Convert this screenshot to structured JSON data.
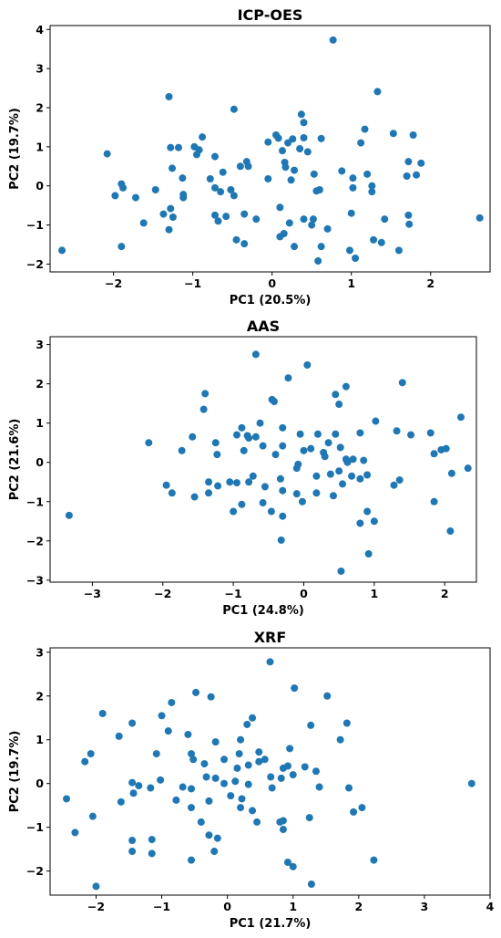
{
  "chart_data": [
    {
      "type": "scatter",
      "title": "ICP-OES",
      "xlabel": "PC1 (20.5%)",
      "ylabel": "PC2 (19.7%)",
      "xlim": [
        -2.8,
        2.75
      ],
      "ylim": [
        -2.2,
        4.1
      ],
      "xticks": [
        -2,
        -1,
        0,
        1,
        2
      ],
      "yticks": [
        -2,
        -1,
        0,
        1,
        2,
        3,
        4
      ],
      "grid": false,
      "color": "#1f77b4",
      "points": [
        [
          0.77,
          3.73
        ],
        [
          1.33,
          2.41
        ],
        [
          -1.3,
          2.28
        ],
        [
          -0.48,
          1.96
        ],
        [
          0.37,
          1.83
        ],
        [
          0.4,
          1.62
        ],
        [
          -0.88,
          1.25
        ],
        [
          1.17,
          1.45
        ],
        [
          1.53,
          1.34
        ],
        [
          1.78,
          1.3
        ],
        [
          0.05,
          1.3
        ],
        [
          0.08,
          1.22
        ],
        [
          0.26,
          1.2
        ],
        [
          0.62,
          1.21
        ],
        [
          0.4,
          1.23
        ],
        [
          -0.05,
          1.12
        ],
        [
          0.2,
          1.1
        ],
        [
          1.12,
          1.1
        ],
        [
          -2.08,
          0.82
        ],
        [
          -1.28,
          0.98
        ],
        [
          -1.18,
          0.98
        ],
        [
          -0.98,
          1.0
        ],
        [
          -0.92,
          0.92
        ],
        [
          -0.72,
          0.75
        ],
        [
          -0.95,
          0.8
        ],
        [
          0.35,
          0.95
        ],
        [
          0.45,
          0.87
        ],
        [
          0.13,
          0.9
        ],
        [
          -0.32,
          0.62
        ],
        [
          -0.3,
          0.5
        ],
        [
          -0.4,
          0.5
        ],
        [
          0.16,
          0.6
        ],
        [
          0.17,
          0.48
        ],
        [
          0.28,
          0.4
        ],
        [
          -1.26,
          0.45
        ],
        [
          -1.13,
          0.2
        ],
        [
          -0.62,
          0.35
        ],
        [
          -0.78,
          0.18
        ],
        [
          0.53,
          0.3
        ],
        [
          0.88,
          0.38
        ],
        [
          1.02,
          0.2
        ],
        [
          1.2,
          0.3
        ],
        [
          1.7,
          0.25
        ],
        [
          1.82,
          0.28
        ],
        [
          1.88,
          0.58
        ],
        [
          1.72,
          0.62
        ],
        [
          -1.9,
          0.05
        ],
        [
          -1.88,
          -0.05
        ],
        [
          -1.98,
          -0.25
        ],
        [
          -1.72,
          -0.3
        ],
        [
          -1.47,
          -0.1
        ],
        [
          -1.12,
          -0.22
        ],
        [
          -1.12,
          -0.3
        ],
        [
          -0.72,
          -0.05
        ],
        [
          -0.65,
          -0.15
        ],
        [
          -0.52,
          -0.1
        ],
        [
          -0.48,
          -0.25
        ],
        [
          -0.05,
          0.18
        ],
        [
          0.24,
          0.15
        ],
        [
          0.56,
          -0.13
        ],
        [
          0.6,
          -0.1
        ],
        [
          1.26,
          -0.15
        ],
        [
          1.26,
          0.0
        ],
        [
          1.02,
          -0.05
        ],
        [
          -1.62,
          -0.95
        ],
        [
          -1.37,
          -0.72
        ],
        [
          -1.28,
          -0.58
        ],
        [
          -1.25,
          -0.8
        ],
        [
          -1.3,
          -1.12
        ],
        [
          -0.72,
          -0.75
        ],
        [
          -0.68,
          -0.9
        ],
        [
          -0.58,
          -0.78
        ],
        [
          -0.35,
          -0.72
        ],
        [
          -0.2,
          -0.85
        ],
        [
          0.1,
          -0.55
        ],
        [
          0.22,
          -0.95
        ],
        [
          0.15,
          -1.22
        ],
        [
          0.1,
          -1.3
        ],
        [
          0.28,
          -1.55
        ],
        [
          0.4,
          -0.85
        ],
        [
          0.52,
          -0.85
        ],
        [
          0.5,
          -1.0
        ],
        [
          0.7,
          -1.1
        ],
        [
          0.62,
          -1.55
        ],
        [
          1.0,
          -0.7
        ],
        [
          1.42,
          -0.85
        ],
        [
          1.72,
          -0.75
        ],
        [
          1.73,
          -0.98
        ],
        [
          2.62,
          -0.82
        ],
        [
          -0.45,
          -1.38
        ],
        [
          -0.35,
          -1.48
        ],
        [
          -1.9,
          -1.55
        ],
        [
          -2.65,
          -1.65
        ],
        [
          0.58,
          -1.92
        ],
        [
          0.98,
          -1.65
        ],
        [
          1.05,
          -1.85
        ],
        [
          1.28,
          -1.38
        ],
        [
          1.38,
          -1.45
        ],
        [
          1.6,
          -1.65
        ]
      ]
    },
    {
      "type": "scatter",
      "title": "AAS",
      "xlabel": "PC1 (24.8%)",
      "ylabel": "PC2 (21.6%)",
      "xlim": [
        -3.6,
        2.45
      ],
      "ylim": [
        -3.05,
        3.2
      ],
      "xticks": [
        -3,
        -2,
        -1,
        0,
        1,
        2
      ],
      "yticks": [
        -3,
        -2,
        -1,
        0,
        1,
        2,
        3
      ],
      "grid": false,
      "color": "#1f77b4",
      "points": [
        [
          -0.68,
          2.75
        ],
        [
          0.05,
          2.48
        ],
        [
          -0.22,
          2.15
        ],
        [
          1.4,
          2.03
        ],
        [
          0.6,
          1.93
        ],
        [
          0.45,
          1.73
        ],
        [
          -0.45,
          1.6
        ],
        [
          -0.42,
          1.55
        ],
        [
          0.5,
          1.48
        ],
        [
          -1.4,
          1.75
        ],
        [
          -1.42,
          1.35
        ],
        [
          1.02,
          1.05
        ],
        [
          -0.62,
          1.0
        ],
        [
          -0.3,
          0.88
        ],
        [
          -0.88,
          0.88
        ],
        [
          -0.05,
          0.72
        ],
        [
          0.2,
          0.72
        ],
        [
          0.45,
          0.72
        ],
        [
          0.8,
          0.75
        ],
        [
          1.32,
          0.8
        ],
        [
          1.52,
          0.7
        ],
        [
          1.8,
          0.75
        ],
        [
          2.23,
          1.15
        ],
        [
          -1.58,
          0.65
        ],
        [
          -0.95,
          0.7
        ],
        [
          -0.8,
          0.68
        ],
        [
          -0.78,
          0.62
        ],
        [
          -0.68,
          0.65
        ],
        [
          -1.25,
          0.5
        ],
        [
          -2.2,
          0.5
        ],
        [
          -0.58,
          0.42
        ],
        [
          -0.3,
          0.42
        ],
        [
          0.35,
          0.5
        ],
        [
          0.52,
          0.38
        ],
        [
          -0.85,
          0.3
        ],
        [
          -1.73,
          0.3
        ],
        [
          -1.23,
          0.2
        ],
        [
          -0.4,
          0.2
        ],
        [
          0.0,
          0.3
        ],
        [
          0.1,
          0.35
        ],
        [
          0.28,
          0.25
        ],
        [
          0.3,
          0.15
        ],
        [
          0.6,
          0.08
        ],
        [
          0.62,
          0.0
        ],
        [
          0.7,
          0.08
        ],
        [
          0.85,
          0.05
        ],
        [
          1.85,
          0.22
        ],
        [
          1.95,
          0.32
        ],
        [
          2.02,
          0.35
        ],
        [
          2.33,
          -0.15
        ],
        [
          -1.95,
          -0.58
        ],
        [
          -1.87,
          -0.78
        ],
        [
          -1.55,
          -0.88
        ],
        [
          -1.35,
          -0.5
        ],
        [
          -1.22,
          -0.6
        ],
        [
          -1.05,
          -0.5
        ],
        [
          -0.95,
          -0.52
        ],
        [
          -0.78,
          -0.5
        ],
        [
          -0.72,
          -0.35
        ],
        [
          -0.55,
          -0.62
        ],
        [
          -0.33,
          -0.42
        ],
        [
          -0.1,
          -0.15
        ],
        [
          -0.08,
          -0.05
        ],
        [
          0.18,
          -0.35
        ],
        [
          0.38,
          -0.3
        ],
        [
          0.5,
          -0.22
        ],
        [
          0.55,
          -0.55
        ],
        [
          0.68,
          -0.35
        ],
        [
          0.8,
          -0.42
        ],
        [
          0.9,
          -0.32
        ],
        [
          1.28,
          -0.58
        ],
        [
          1.36,
          -0.45
        ],
        [
          2.1,
          -0.28
        ],
        [
          1.85,
          -1.0
        ],
        [
          -1.35,
          -0.78
        ],
        [
          -1.0,
          -1.25
        ],
        [
          -0.88,
          -1.07
        ],
        [
          -0.58,
          -1.03
        ],
        [
          -0.46,
          -1.25
        ],
        [
          -0.3,
          -0.72
        ],
        [
          -0.3,
          -1.37
        ],
        [
          -0.1,
          -0.8
        ],
        [
          -0.02,
          -1.0
        ],
        [
          0.18,
          -0.78
        ],
        [
          0.42,
          -0.85
        ],
        [
          0.9,
          -1.25
        ],
        [
          0.8,
          -1.55
        ],
        [
          1.0,
          -1.5
        ],
        [
          -0.32,
          -1.98
        ],
        [
          0.92,
          -2.33
        ],
        [
          0.53,
          -2.77
        ],
        [
          -3.33,
          -1.35
        ],
        [
          2.08,
          -1.75
        ]
      ]
    },
    {
      "type": "scatter",
      "title": "XRF",
      "xlabel": "PC1 (21.7%)",
      "ylabel": "PC2 (19.7%)",
      "xlim": [
        -2.7,
        4.0
      ],
      "ylim": [
        -2.55,
        3.1
      ],
      "xticks": [
        -2,
        -1,
        0,
        1,
        2,
        3,
        4
      ],
      "yticks": [
        -2,
        -1,
        0,
        1,
        2,
        3
      ],
      "grid": false,
      "color": "#1f77b4",
      "points": [
        [
          0.65,
          2.78
        ],
        [
          1.02,
          2.18
        ],
        [
          -0.48,
          2.08
        ],
        [
          -0.25,
          1.98
        ],
        [
          1.52,
          2.0
        ],
        [
          -0.85,
          1.85
        ],
        [
          -1.0,
          1.55
        ],
        [
          0.38,
          1.5
        ],
        [
          0.3,
          1.35
        ],
        [
          1.27,
          1.33
        ],
        [
          1.82,
          1.38
        ],
        [
          -1.9,
          1.6
        ],
        [
          -1.45,
          1.38
        ],
        [
          -0.9,
          1.2
        ],
        [
          -0.6,
          1.12
        ],
        [
          0.2,
          1.0
        ],
        [
          -0.18,
          0.95
        ],
        [
          1.72,
          1.0
        ],
        [
          -1.65,
          1.08
        ],
        [
          -2.08,
          0.68
        ],
        [
          -2.17,
          0.5
        ],
        [
          0.18,
          0.68
        ],
        [
          0.48,
          0.72
        ],
        [
          0.95,
          0.8
        ],
        [
          -0.55,
          0.68
        ],
        [
          -0.52,
          0.55
        ],
        [
          -0.35,
          0.45
        ],
        [
          -0.05,
          0.55
        ],
        [
          0.15,
          0.35
        ],
        [
          0.32,
          0.42
        ],
        [
          0.48,
          0.5
        ],
        [
          0.57,
          0.55
        ],
        [
          0.85,
          0.35
        ],
        [
          0.92,
          0.4
        ],
        [
          1.18,
          0.38
        ],
        [
          1.35,
          0.28
        ],
        [
          1.0,
          0.2
        ],
        [
          0.82,
          0.12
        ],
        [
          -1.08,
          0.68
        ],
        [
          -1.45,
          0.02
        ],
        [
          -1.35,
          -0.05
        ],
        [
          -1.17,
          -0.1
        ],
        [
          -1.02,
          0.08
        ],
        [
          -0.68,
          -0.08
        ],
        [
          -0.55,
          -0.12
        ],
        [
          -0.32,
          0.15
        ],
        [
          -0.18,
          0.12
        ],
        [
          -0.05,
          0.0
        ],
        [
          0.12,
          0.05
        ],
        [
          0.32,
          -0.02
        ],
        [
          0.68,
          -0.1
        ],
        [
          0.66,
          0.15
        ],
        [
          1.4,
          -0.08
        ],
        [
          1.85,
          -0.1
        ],
        [
          -1.43,
          -0.22
        ],
        [
          -1.62,
          -0.42
        ],
        [
          -2.45,
          -0.35
        ],
        [
          -2.32,
          -1.12
        ],
        [
          -2.05,
          -0.75
        ],
        [
          -0.78,
          -0.38
        ],
        [
          -0.55,
          -0.55
        ],
        [
          -0.28,
          -0.4
        ],
        [
          0.05,
          -0.28
        ],
        [
          0.2,
          -0.55
        ],
        [
          0.22,
          -0.35
        ],
        [
          0.38,
          -0.62
        ],
        [
          0.45,
          -0.88
        ],
        [
          0.8,
          -0.88
        ],
        [
          0.85,
          -0.85
        ],
        [
          0.85,
          -1.05
        ],
        [
          1.25,
          -0.78
        ],
        [
          1.92,
          -0.65
        ],
        [
          2.05,
          -0.55
        ],
        [
          -0.4,
          -0.88
        ],
        [
          -0.28,
          -1.18
        ],
        [
          -0.15,
          -1.25
        ],
        [
          -1.15,
          -1.28
        ],
        [
          -1.45,
          -1.3
        ],
        [
          -1.15,
          -1.6
        ],
        [
          -1.45,
          -1.55
        ],
        [
          -0.55,
          -1.75
        ],
        [
          -0.2,
          -1.55
        ],
        [
          0.92,
          -1.8
        ],
        [
          1.0,
          -1.9
        ],
        [
          1.28,
          -2.3
        ],
        [
          2.23,
          -1.75
        ],
        [
          -2.0,
          -2.35
        ],
        [
          3.72,
          0.0
        ]
      ]
    }
  ]
}
